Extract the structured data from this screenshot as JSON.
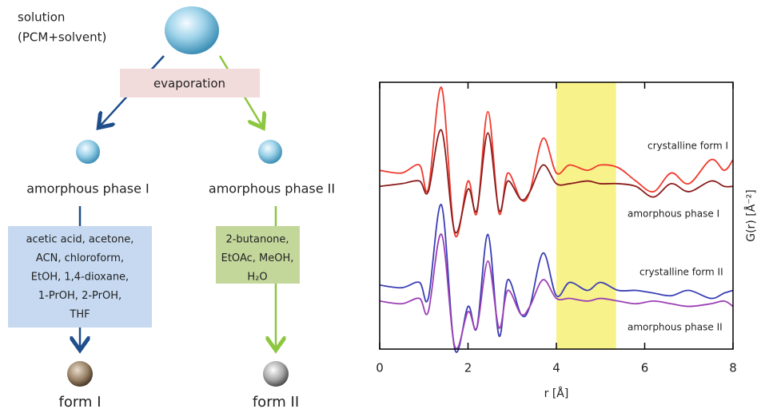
{
  "diagram": {
    "source": [
      "solution",
      "(PCM+solvent)"
    ],
    "process": "evaporation",
    "phases": [
      "amorphous phase I",
      "amorphous phase II"
    ],
    "solvents": [
      [
        "acetic acid, acetone,",
        "ACN, chloroform,",
        "EtOH, 1,4-dioxane,",
        "1-PrOH, 2-PrOH,",
        "THF"
      ],
      [
        "2-butanone,",
        "EtOAc, MeOH,",
        "H₂O"
      ]
    ],
    "forms": [
      "form I",
      "form II"
    ]
  },
  "chart_data": {
    "type": "line",
    "xlabel": "r [Å]",
    "ylabel": "G(r) [Å⁻²]",
    "xlim": [
      0,
      8
    ],
    "xticks": [
      0,
      2,
      4,
      6,
      8
    ],
    "ylim": [
      0,
      100
    ],
    "highlight_range": [
      4,
      5.35
    ],
    "highlight_color": "#f7f28a",
    "x": [
      0,
      0.5,
      0.9,
      1.1,
      1.4,
      1.7,
      2.0,
      2.2,
      2.45,
      2.7,
      2.9,
      3.2,
      3.4,
      3.7,
      4.0,
      4.3,
      4.7,
      5.0,
      5.4,
      5.8,
      6.2,
      6.6,
      7.0,
      7.5,
      7.8,
      8.0
    ],
    "series": [
      {
        "name": "crystalline form I",
        "color": "#f03a2e",
        "values": [
          67,
          66,
          69,
          60,
          98,
          43,
          63,
          51,
          89,
          51,
          66,
          56,
          59,
          79,
          66,
          69,
          67,
          69,
          68,
          63,
          59,
          66,
          62,
          71,
          67,
          71
        ]
      },
      {
        "name": "amorphous phase  I",
        "color": "#8b1d1d",
        "values": [
          61,
          62,
          63,
          59,
          82,
          44,
          60,
          52,
          81,
          52,
          63,
          56,
          59,
          69,
          62,
          62,
          63,
          62,
          62,
          61,
          57,
          62,
          59,
          63,
          61,
          61
        ]
      },
      {
        "name": "crystalline form II",
        "color": "#3b3fb5",
        "values": [
          24,
          23,
          25,
          19,
          54,
          0,
          16,
          8,
          43,
          5,
          26,
          13,
          16,
          36,
          20,
          25,
          22,
          25,
          22,
          22,
          21,
          20,
          22,
          19,
          21,
          22
        ]
      },
      {
        "name": "amorphous phase  II",
        "color": "#9b3fb5",
        "values": [
          18,
          17,
          19,
          14,
          43,
          1,
          14,
          8,
          33,
          8,
          22,
          13,
          16,
          26,
          19,
          19,
          18,
          19,
          18,
          17,
          18,
          17,
          16,
          17,
          18,
          16
        ]
      }
    ]
  }
}
